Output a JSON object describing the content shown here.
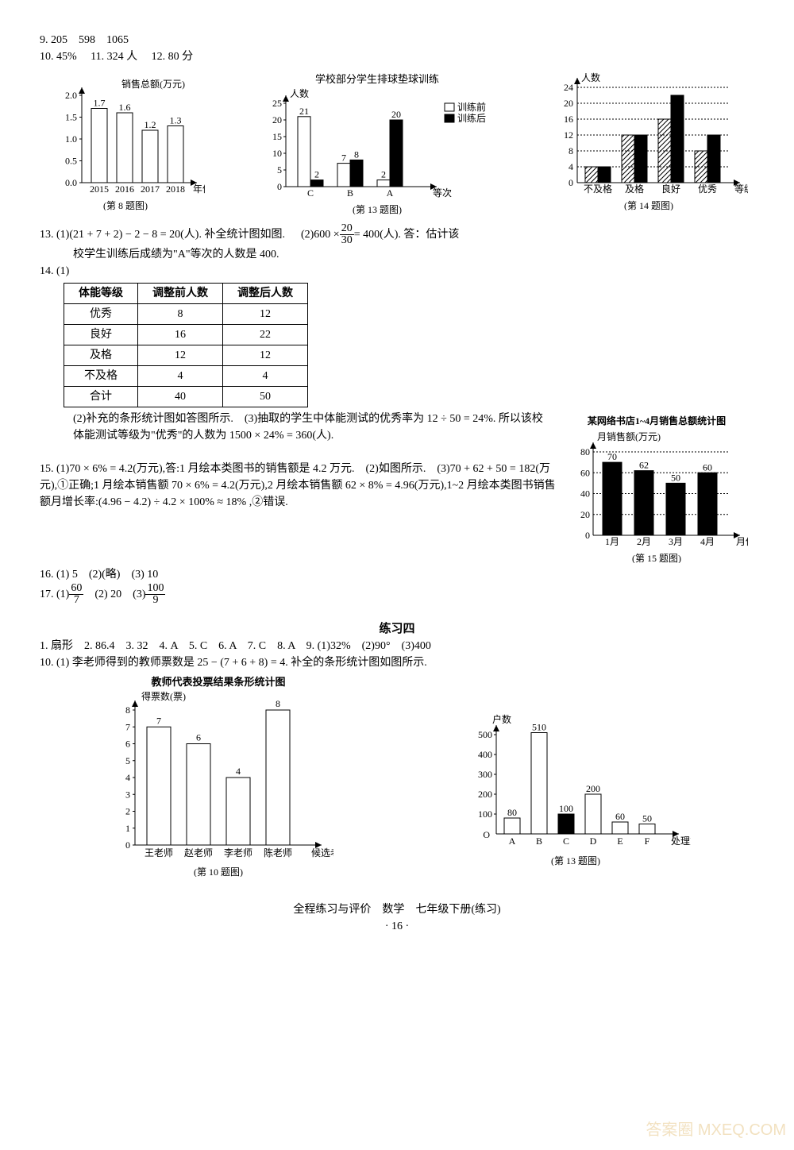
{
  "answers": {
    "a9": "9.  205　598　1065",
    "a10": "10.  45%",
    "a11": "11.  324 人",
    "a12": "12. 80 分",
    "a13a": "13.  (1)(21 + 7 + 2) − 2 − 8 = 20(人).  补全统计图如图.",
    "a13b": "(2)600 × ",
    "a13c": " = 400(人).  答：估计该",
    "a13d": "校学生训练后成绩为\"A\"等次的人数是 400.",
    "a14": "14.  (1)",
    "a14_2": "(2)补充的条形统计图如答图所示.　(3)抽取的学生中体能测试的优秀率为 12 ÷ 50 = 24%. 所以该校体能测试等级为\"优秀\"的人数为 1500 × 24% = 360(人).",
    "a15": "15.  (1)70 × 6% = 4.2(万元),答:1 月绘本类图书的销售额是 4.2 万元.　(2)如图所示.　(3)70 + 62 + 50 = 182(万元),①正确;1 月绘本销售额 70 × 6% = 4.2(万元),2 月绘本销售额 62 × 8% = 4.96(万元),1~2 月绘本类图书销售额月增长率:(4.96 − 4.2) ÷ 4.2 × 100% ≈ 18% ,②错误.",
    "a16": "16.  (1) 5　(2)(略)　(3) 10",
    "a17a": "17.  (1) ",
    "a17b": "　(2) 20　(3) ",
    "ex4_title": "练习四",
    "ex4_1": "1.  扇形　2.  86.4　3.  32　4.  A　5.  C　6.  A　7.  C　8.  A　9.  (1)32%　(2)90°　(3)400",
    "ex4_10": "10.  (1)  李老师得到的教师票数是 25 − (7 + 6 + 8) = 4. 补全的条形统计图如图所示."
  },
  "chart8": {
    "title": "(第 8 题图)",
    "ylabel": "销售总额(万元)",
    "xlabel": "年份",
    "categories": [
      "2015",
      "2016",
      "2017",
      "2018"
    ],
    "values": [
      1.7,
      1.6,
      1.2,
      1.3
    ],
    "ylim": [
      0,
      2.0
    ],
    "ytick": 0.5,
    "bar_color": "#ffffff",
    "border": "#000"
  },
  "chart13": {
    "title_top": "学校部分学生排球垫球训练",
    "caption": "(第 13 题图)",
    "ylabel": "人数",
    "xlabel": "等次",
    "legend": [
      "训练前",
      "训练后"
    ],
    "categories": [
      "C",
      "B",
      "A"
    ],
    "series1": [
      21,
      7,
      2
    ],
    "series2": [
      2,
      8,
      20
    ],
    "ylim": [
      0,
      25
    ],
    "ytick": 5,
    "s1_fill": "#ffffff",
    "s2_fill": "#000000"
  },
  "chart14": {
    "caption": "(第 14 题图)",
    "ylabel": "人数",
    "xlabel": "等级",
    "cats": [
      "不及格",
      "及格",
      "良好",
      "优秀"
    ],
    "before": [
      4,
      12,
      16,
      8
    ],
    "after": [
      4,
      12,
      22,
      12
    ],
    "ylim": [
      0,
      24
    ],
    "ytick": 4
  },
  "table14": {
    "headers": [
      "体能等级",
      "调整前人数",
      "调整后人数"
    ],
    "rows": [
      [
        "优秀",
        "8",
        "12"
      ],
      [
        "良好",
        "16",
        "22"
      ],
      [
        "及格",
        "12",
        "12"
      ],
      [
        "不及格",
        "4",
        "4"
      ],
      [
        "合计",
        "40",
        "50"
      ]
    ]
  },
  "chart15": {
    "title": "某网络书店1~4月销售总额统计图",
    "ylabel": "月销售额(万元)",
    "xlabel": "月份",
    "cats": [
      "1月",
      "2月",
      "3月",
      "4月"
    ],
    "vals": [
      70,
      62,
      50,
      60
    ],
    "caption": "(第 15 题图)",
    "ylim": [
      0,
      80
    ],
    "ytick": 20
  },
  "chart10b": {
    "title": "教师代表投票结果条形统计图",
    "ylabel": "得票数(票)",
    "xlabel": "候选老师",
    "cats": [
      "王老师",
      "赵老师",
      "李老师",
      "陈老师"
    ],
    "vals": [
      7,
      6,
      4,
      8
    ],
    "caption": "(第 10 题图)",
    "ylim": [
      0,
      8
    ],
    "ytick": 1
  },
  "chart13b": {
    "ylabel": "户数",
    "xlabel": "处理方式",
    "cats": [
      "A",
      "B",
      "C",
      "D",
      "E",
      "F"
    ],
    "vals": [
      80,
      510,
      100,
      200,
      60,
      50
    ],
    "caption": "(第 13 题图)",
    "ylim": [
      0,
      500
    ],
    "ytick": 100,
    "highlight_index": 2
  },
  "fracs": {
    "f13": {
      "n": "20",
      "d": "30"
    },
    "f17a": {
      "n": "60",
      "d": "7"
    },
    "f17b": {
      "n": "100",
      "d": "9"
    }
  },
  "footer": {
    "line1": "全程练习与评价　数学　七年级下册(练习)",
    "page": "· 16 ·"
  },
  "watermark": "答案圈 MXEQ.COM"
}
